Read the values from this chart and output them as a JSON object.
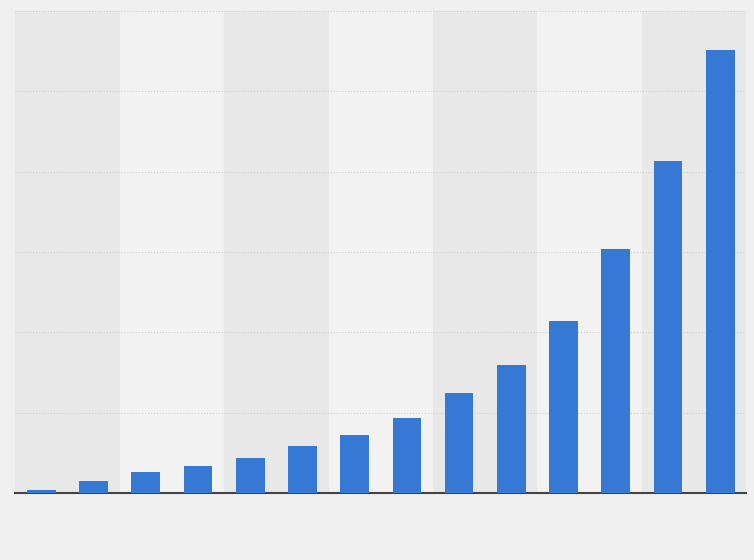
{
  "values": [
    0.5,
    2.2,
    3.8,
    4.8,
    6.2,
    8.5,
    10.5,
    13.5,
    18,
    23,
    31,
    44,
    60,
    80
  ],
  "bar_color": "#3579d4",
  "figure_bg": "#f0f0f0",
  "column_dark": "#e8e8e8",
  "column_light": "#f2f2f2",
  "grid_color": "#cccccc",
  "axis_color": "#444444",
  "ylim": [
    0,
    87
  ],
  "bar_width": 0.55,
  "n_gridlines": 6,
  "n_columns": 7
}
